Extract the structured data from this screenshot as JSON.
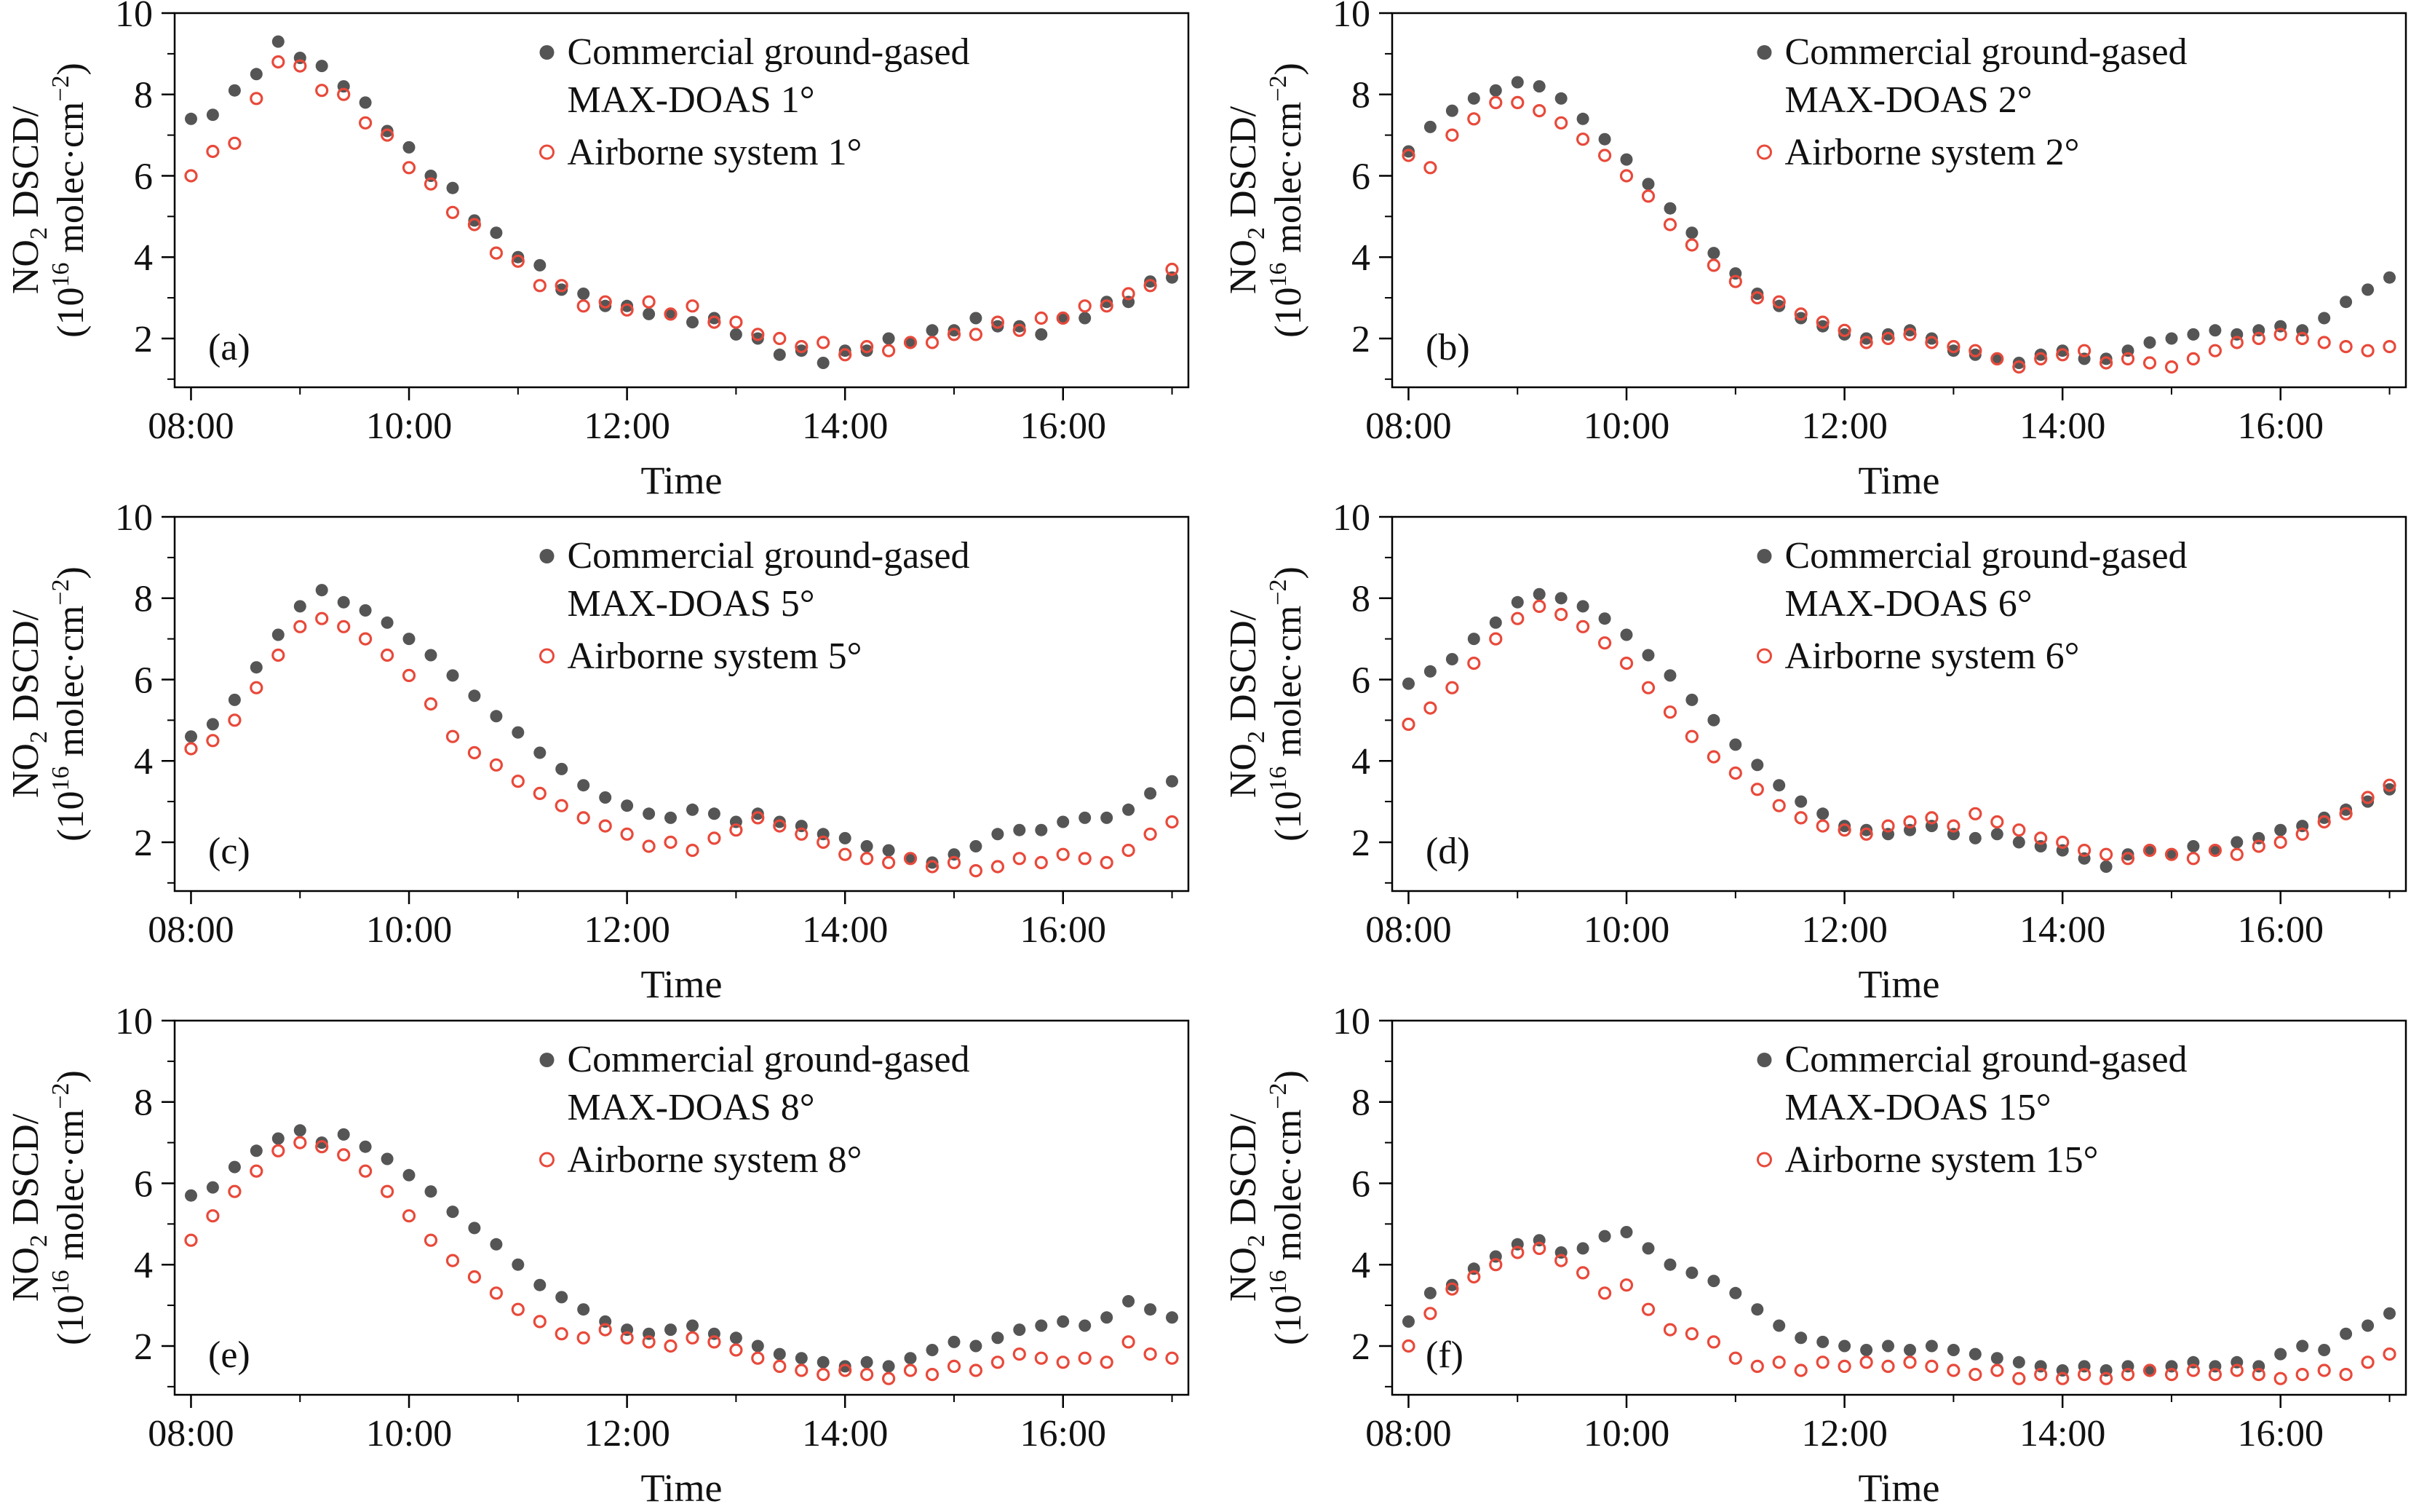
{
  "styles": {
    "background": "#ffffff",
    "axis_color": "#000000",
    "marker_dark": "#555555",
    "marker_red": "#e8493a"
  },
  "axes": {
    "x": {
      "label": "Time",
      "min": 7.85,
      "max": 17.15,
      "ticks": [
        {
          "v": 8,
          "label": "08:00"
        },
        {
          "v": 10,
          "label": "10:00"
        },
        {
          "v": 12,
          "label": "12:00"
        },
        {
          "v": 14,
          "label": "14:00"
        },
        {
          "v": 16,
          "label": "16:00"
        }
      ],
      "minor": [
        9,
        11,
        13,
        15,
        17
      ]
    },
    "y": {
      "min": 0.8,
      "max": 10,
      "ticks": [
        {
          "v": 2,
          "label": "2"
        },
        {
          "v": 4,
          "label": "4"
        },
        {
          "v": 6,
          "label": "6"
        },
        {
          "v": 8,
          "label": "8"
        },
        {
          "v": 10,
          "label": "10"
        }
      ],
      "minor": [
        1,
        3,
        5,
        7,
        9
      ],
      "label_line1": [
        {
          "t": "NO"
        },
        {
          "t": "2",
          "s": "sub"
        },
        {
          "t": " DSCD/"
        }
      ],
      "label_line2": [
        {
          "t": "(10"
        },
        {
          "t": "16",
          "s": "sup"
        },
        {
          "t": " molec·cm"
        },
        {
          "t": "−2",
          "s": "sup"
        },
        {
          "t": ")"
        }
      ]
    }
  },
  "chart_data": {
    "type": "scatter",
    "x_unit": "hour of day",
    "ylim": [
      0.8,
      10
    ],
    "x_hours": [
      8.0,
      8.2,
      8.4,
      8.6,
      8.8,
      9.0,
      9.2,
      9.4,
      9.6,
      9.8,
      10.0,
      10.2,
      10.4,
      10.6,
      10.8,
      11.0,
      11.2,
      11.4,
      11.6,
      11.8,
      12.0,
      12.2,
      12.4,
      12.6,
      12.8,
      13.0,
      13.2,
      13.4,
      13.6,
      13.8,
      14.0,
      14.2,
      14.4,
      14.6,
      14.8,
      15.0,
      15.2,
      15.4,
      15.6,
      15.8,
      16.0,
      16.2,
      16.4,
      16.6,
      16.8,
      17.0
    ],
    "panels": [
      {
        "id": "a",
        "label": "(a)",
        "elevation_angle": "1°",
        "legend_line1": "Commercial ground-gased",
        "legend_line2": "MAX-DOAS 1°",
        "legend_airborne": "Airborne system 1°",
        "series": {
          "maxdoas": [
            7.4,
            7.5,
            8.1,
            8.5,
            9.3,
            8.9,
            8.7,
            8.2,
            7.8,
            7.1,
            6.7,
            6.0,
            5.7,
            4.9,
            4.6,
            4.0,
            3.8,
            3.2,
            3.1,
            2.8,
            2.8,
            2.6,
            2.6,
            2.4,
            2.5,
            2.1,
            2.0,
            1.6,
            1.7,
            1.4,
            1.7,
            1.7,
            2.0,
            1.9,
            2.2,
            2.2,
            2.5,
            2.3,
            2.3,
            2.1,
            2.5,
            2.5,
            2.9,
            2.9,
            3.4,
            3.5
          ],
          "airborne": [
            6.0,
            6.6,
            6.8,
            7.9,
            8.8,
            8.7,
            8.1,
            8.0,
            7.3,
            7.0,
            6.2,
            5.8,
            5.1,
            4.8,
            4.1,
            3.9,
            3.3,
            3.3,
            2.8,
            2.9,
            2.7,
            2.9,
            2.6,
            2.8,
            2.4,
            2.4,
            2.1,
            2.0,
            1.8,
            1.9,
            1.6,
            1.8,
            1.7,
            1.9,
            1.9,
            2.1,
            2.1,
            2.4,
            2.2,
            2.5,
            2.5,
            2.8,
            2.8,
            3.1,
            3.3,
            3.7
          ]
        }
      },
      {
        "id": "b",
        "label": "(b)",
        "elevation_angle": "2°",
        "legend_line1": "Commercial ground-gased",
        "legend_line2": "MAX-DOAS 2°",
        "legend_airborne": "Airborne system 2°",
        "series": {
          "maxdoas": [
            6.6,
            7.2,
            7.6,
            7.9,
            8.1,
            8.3,
            8.2,
            7.9,
            7.4,
            6.9,
            6.4,
            5.8,
            5.2,
            4.6,
            4.1,
            3.6,
            3.1,
            2.8,
            2.5,
            2.3,
            2.1,
            2.0,
            2.1,
            2.2,
            2.0,
            1.7,
            1.6,
            1.5,
            1.4,
            1.6,
            1.7,
            1.5,
            1.5,
            1.7,
            1.9,
            2.0,
            2.1,
            2.2,
            2.1,
            2.2,
            2.3,
            2.2,
            2.5,
            2.9,
            3.2,
            3.5
          ],
          "airborne": [
            6.5,
            6.2,
            7.0,
            7.4,
            7.8,
            7.8,
            7.6,
            7.3,
            6.9,
            6.5,
            6.0,
            5.5,
            4.8,
            4.3,
            3.8,
            3.4,
            3.0,
            2.9,
            2.6,
            2.4,
            2.2,
            1.9,
            2.0,
            2.1,
            1.9,
            1.8,
            1.7,
            1.5,
            1.3,
            1.5,
            1.6,
            1.7,
            1.4,
            1.5,
            1.4,
            1.3,
            1.5,
            1.7,
            1.9,
            2.0,
            2.1,
            2.0,
            1.9,
            1.8,
            1.7,
            1.8
          ]
        }
      },
      {
        "id": "c",
        "label": "(c)",
        "elevation_angle": "5°",
        "legend_line1": "Commercial ground-gased",
        "legend_line2": "MAX-DOAS 5°",
        "legend_airborne": "Airborne system 5°",
        "series": {
          "maxdoas": [
            4.6,
            4.9,
            5.5,
            6.3,
            7.1,
            7.8,
            8.2,
            7.9,
            7.7,
            7.4,
            7.0,
            6.6,
            6.1,
            5.6,
            5.1,
            4.7,
            4.2,
            3.8,
            3.4,
            3.1,
            2.9,
            2.7,
            2.6,
            2.8,
            2.7,
            2.5,
            2.7,
            2.5,
            2.4,
            2.2,
            2.1,
            1.9,
            1.8,
            1.6,
            1.5,
            1.7,
            1.9,
            2.2,
            2.3,
            2.3,
            2.5,
            2.6,
            2.6,
            2.8,
            3.2,
            3.5
          ],
          "airborne": [
            4.3,
            4.5,
            5.0,
            5.8,
            6.6,
            7.3,
            7.5,
            7.3,
            7.0,
            6.6,
            6.1,
            5.4,
            4.6,
            4.2,
            3.9,
            3.5,
            3.2,
            2.9,
            2.6,
            2.4,
            2.2,
            1.9,
            2.0,
            1.8,
            2.1,
            2.3,
            2.6,
            2.4,
            2.2,
            2.0,
            1.7,
            1.6,
            1.5,
            1.6,
            1.4,
            1.5,
            1.3,
            1.4,
            1.6,
            1.5,
            1.7,
            1.6,
            1.5,
            1.8,
            2.2,
            2.5
          ]
        }
      },
      {
        "id": "d",
        "label": "(d)",
        "elevation_angle": "6°",
        "legend_line1": "Commercial ground-gased",
        "legend_line2": "MAX-DOAS 6°",
        "legend_airborne": "Airborne system 6°",
        "series": {
          "maxdoas": [
            5.9,
            6.2,
            6.5,
            7.0,
            7.4,
            7.9,
            8.1,
            8.0,
            7.8,
            7.5,
            7.1,
            6.6,
            6.1,
            5.5,
            5.0,
            4.4,
            3.9,
            3.4,
            3.0,
            2.7,
            2.4,
            2.3,
            2.2,
            2.3,
            2.4,
            2.2,
            2.1,
            2.2,
            2.0,
            1.9,
            1.8,
            1.6,
            1.4,
            1.7,
            1.8,
            1.7,
            1.9,
            1.8,
            2.0,
            2.1,
            2.3,
            2.4,
            2.6,
            2.8,
            3.0,
            3.3
          ],
          "airborne": [
            4.9,
            5.3,
            5.8,
            6.4,
            7.0,
            7.5,
            7.8,
            7.6,
            7.3,
            6.9,
            6.4,
            5.8,
            5.2,
            4.6,
            4.1,
            3.7,
            3.3,
            2.9,
            2.6,
            2.4,
            2.3,
            2.2,
            2.4,
            2.5,
            2.6,
            2.4,
            2.7,
            2.5,
            2.3,
            2.1,
            2.0,
            1.8,
            1.7,
            1.6,
            1.8,
            1.7,
            1.6,
            1.8,
            1.7,
            1.9,
            2.0,
            2.2,
            2.5,
            2.7,
            3.1,
            3.4
          ]
        }
      },
      {
        "id": "e",
        "label": "(e)",
        "elevation_angle": "8°",
        "legend_line1": "Commercial ground-gased",
        "legend_line2": "MAX-DOAS 8°",
        "legend_airborne": "Airborne system 8°",
        "series": {
          "maxdoas": [
            5.7,
            5.9,
            6.4,
            6.8,
            7.1,
            7.3,
            7.0,
            7.2,
            6.9,
            6.6,
            6.2,
            5.8,
            5.3,
            4.9,
            4.5,
            4.0,
            3.5,
            3.2,
            2.9,
            2.6,
            2.4,
            2.3,
            2.4,
            2.5,
            2.3,
            2.2,
            2.0,
            1.8,
            1.7,
            1.6,
            1.5,
            1.6,
            1.5,
            1.7,
            1.9,
            2.1,
            2.0,
            2.2,
            2.4,
            2.5,
            2.6,
            2.5,
            2.7,
            3.1,
            2.9,
            2.7
          ],
          "airborne": [
            4.6,
            5.2,
            5.8,
            6.3,
            6.8,
            7.0,
            6.9,
            6.7,
            6.3,
            5.8,
            5.2,
            4.6,
            4.1,
            3.7,
            3.3,
            2.9,
            2.6,
            2.3,
            2.2,
            2.4,
            2.2,
            2.1,
            2.0,
            2.2,
            2.1,
            1.9,
            1.7,
            1.5,
            1.4,
            1.3,
            1.4,
            1.3,
            1.2,
            1.4,
            1.3,
            1.5,
            1.4,
            1.6,
            1.8,
            1.7,
            1.6,
            1.7,
            1.6,
            2.1,
            1.8,
            1.7
          ]
        }
      },
      {
        "id": "f",
        "label": "(f)",
        "elevation_angle": "15°",
        "legend_line1": "Commercial ground-gased",
        "legend_line2": "MAX-DOAS 15°",
        "legend_airborne": "Airborne system 15°",
        "series": {
          "maxdoas": [
            2.6,
            3.3,
            3.5,
            3.9,
            4.2,
            4.5,
            4.6,
            4.3,
            4.4,
            4.7,
            4.8,
            4.4,
            4.0,
            3.8,
            3.6,
            3.3,
            2.9,
            2.5,
            2.2,
            2.1,
            2.0,
            1.9,
            2.0,
            1.9,
            2.0,
            1.9,
            1.8,
            1.7,
            1.6,
            1.5,
            1.4,
            1.5,
            1.4,
            1.5,
            1.4,
            1.5,
            1.6,
            1.5,
            1.6,
            1.5,
            1.8,
            2.0,
            1.9,
            2.3,
            2.5,
            2.8
          ],
          "airborne": [
            2.0,
            2.8,
            3.4,
            3.7,
            4.0,
            4.3,
            4.4,
            4.1,
            3.8,
            3.3,
            3.5,
            2.9,
            2.4,
            2.3,
            2.1,
            1.7,
            1.5,
            1.6,
            1.4,
            1.6,
            1.5,
            1.6,
            1.5,
            1.6,
            1.5,
            1.4,
            1.3,
            1.4,
            1.2,
            1.3,
            1.2,
            1.3,
            1.2,
            1.3,
            1.4,
            1.3,
            1.4,
            1.3,
            1.4,
            1.3,
            1.2,
            1.3,
            1.4,
            1.3,
            1.6,
            1.8
          ]
        }
      }
    ]
  }
}
